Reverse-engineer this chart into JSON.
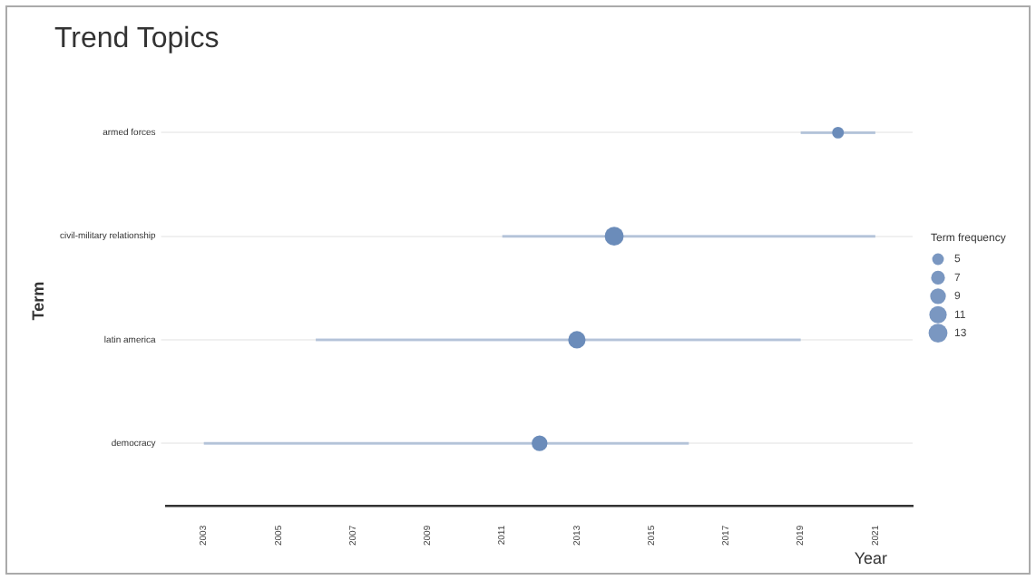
{
  "chart_data": {
    "type": "bubble",
    "title": "Trend Topics",
    "xlabel": "Year",
    "ylabel": "Term",
    "legend_title": "Term frequency",
    "orientation": "horizontal",
    "categories": [
      "armed forces",
      "civil-military relationship",
      "latin america",
      "democracy"
    ],
    "values": [
      2020,
      2014,
      2013,
      2012
    ],
    "errors": [
      [
        2019,
        2021
      ],
      [
        2011,
        2021
      ],
      [
        2006,
        2019
      ],
      [
        2003,
        2016
      ]
    ],
    "sizes": [
      5,
      13,
      11,
      9
    ],
    "size_legend": [
      5,
      7,
      9,
      11,
      13
    ],
    "color": "#6b8cba",
    "xlim": [
      2002,
      2022
    ],
    "xticks": [
      2003,
      2005,
      2007,
      2009,
      2011,
      2013,
      2015,
      2017,
      2019,
      2021
    ],
    "grid": "y"
  }
}
